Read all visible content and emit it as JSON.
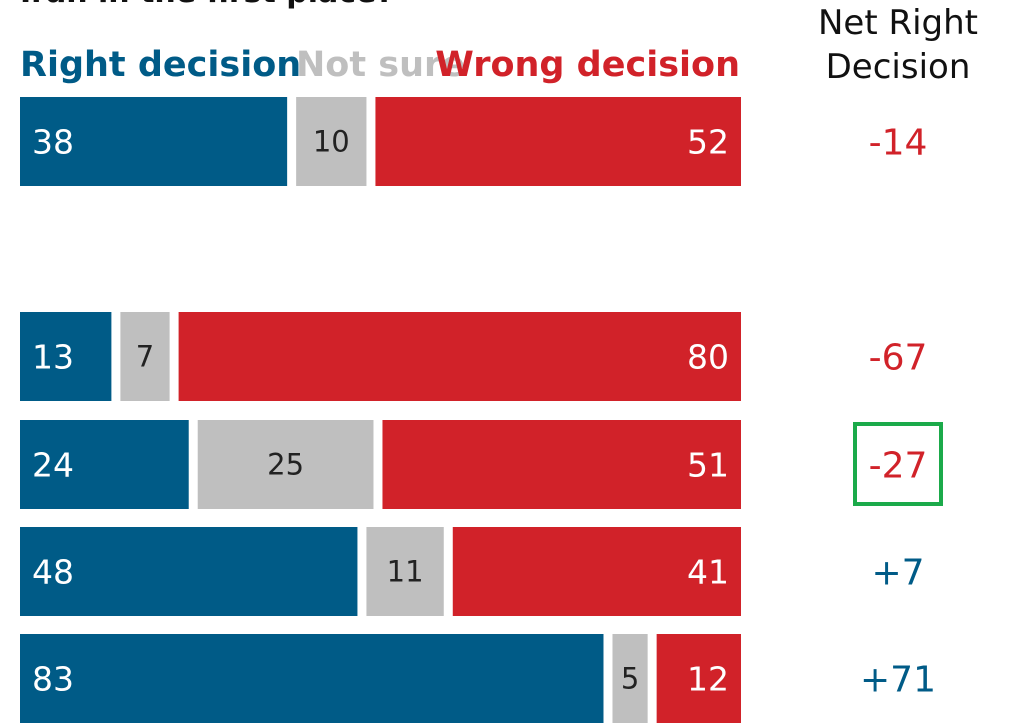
{
  "chart_data": {
    "type": "bar",
    "stacked": true,
    "orientation": "horizontal",
    "title": "Iran in the first place?",
    "legend_placement": "top",
    "series": [
      {
        "name": "Right decision",
        "color": "#005B87",
        "values": [
          38,
          13,
          24,
          48,
          83
        ]
      },
      {
        "name": "Not sure",
        "color": "#BFBFBF",
        "values": [
          10,
          7,
          25,
          11,
          5
        ]
      },
      {
        "name": "Wrong decision",
        "color": "#D12229",
        "values": [
          52,
          80,
          51,
          41,
          12
        ]
      }
    ],
    "net_header": "Net Right Decision",
    "net_values": [
      "-14",
      "-67",
      "-27",
      "+7",
      "+71"
    ],
    "highlighted_net_index": 2,
    "highlight_color": "#1BAA4A",
    "grid": false
  }
}
